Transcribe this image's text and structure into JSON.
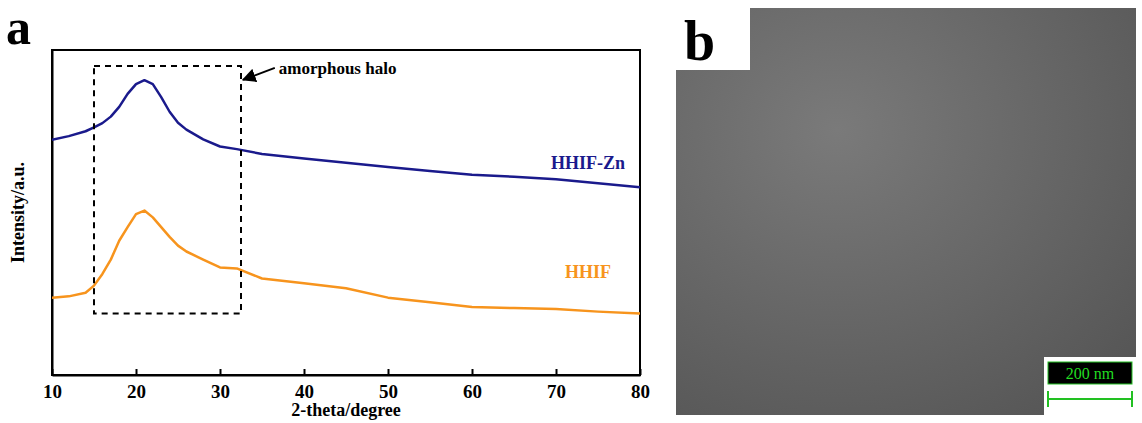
{
  "chart_data": {
    "type": "line",
    "panel_label": "a",
    "x_label": "2-theta/degree",
    "y_label": "Intensity/a.u.",
    "x": [
      10,
      12,
      14,
      15,
      16,
      17,
      18,
      19,
      20,
      21,
      22,
      23,
      24,
      25,
      26,
      28,
      30,
      32,
      35,
      40,
      45,
      50,
      55,
      60,
      65,
      70,
      75,
      80
    ],
    "series": [
      {
        "name": "HHIF-Zn",
        "color": "#1a1a8c",
        "values": [
          72.4,
          73.5,
          75.0,
          76.2,
          77.5,
          79.5,
          82.5,
          86.5,
          89.5,
          90.7,
          89.5,
          85.5,
          81.0,
          77.6,
          75.5,
          72.5,
          70.3,
          69.5,
          68.0,
          66.6,
          65.3,
          64.0,
          62.8,
          61.6,
          61.0,
          60.2,
          59.0,
          57.8
        ]
      },
      {
        "name": "HHIF",
        "color": "#f7941d",
        "values": [
          23.8,
          24.2,
          25.3,
          27.5,
          31.1,
          35.5,
          41.3,
          45.5,
          49.5,
          50.6,
          48.5,
          45.5,
          42.5,
          39.8,
          38.0,
          35.5,
          33.1,
          32.8,
          29.7,
          28.2,
          26.7,
          23.8,
          22.4,
          20.9,
          20.6,
          20.3,
          19.5,
          18.9
        ]
      }
    ],
    "xlim": [
      10,
      80
    ],
    "xticks": [
      10,
      20,
      30,
      40,
      50,
      60,
      70,
      80
    ],
    "ylim": [
      0,
      100
    ],
    "tick_labels": "x",
    "annotations": [
      {
        "text": "amorphous halo",
        "x": 37,
        "y": 94.5,
        "box": {
          "x": [
            15,
            32.5
          ],
          "y": [
            18.9,
            95.1
          ]
        }
      }
    ]
  },
  "image_panel": {
    "label": "b",
    "scale_bar": "200 nm"
  }
}
